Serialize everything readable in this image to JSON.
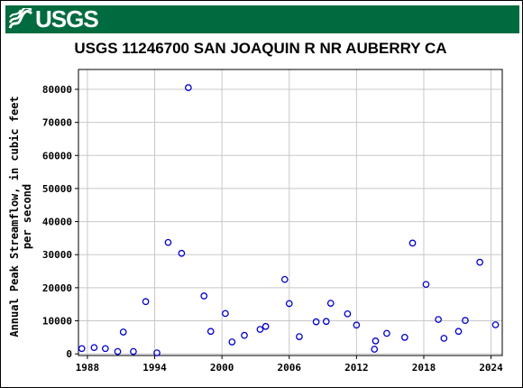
{
  "banner": {
    "logo_text": "USGS",
    "logo_icon": "usgs-wave-icon",
    "background_color": "#006b3f"
  },
  "chart_data": {
    "type": "scatter",
    "title": "USGS 11246700 SAN JOAQUIN R NR AUBERRY CA",
    "xlabel": "",
    "ylabel_lines": [
      "Annual Peak Streamflow, in cubic feet",
      "per second"
    ],
    "xlim": [
      1987.2,
      2025.0
    ],
    "ylim": [
      -500,
      86000
    ],
    "x_ticks": [
      1988,
      1994,
      2000,
      2006,
      2012,
      2018,
      2024
    ],
    "y_ticks": [
      0,
      10000,
      20000,
      30000,
      40000,
      50000,
      60000,
      70000,
      80000
    ],
    "y_tick_labels": [
      "0",
      "10000",
      "20000",
      "30000",
      "40000",
      "50000",
      "60000",
      "70000",
      "80000"
    ],
    "grid": true,
    "marker_color": "#0000cc",
    "points": [
      {
        "x": 1987.5,
        "y": 1600
      },
      {
        "x": 1988.6,
        "y": 1900
      },
      {
        "x": 1989.6,
        "y": 1600
      },
      {
        "x": 1990.7,
        "y": 700
      },
      {
        "x": 1991.2,
        "y": 6600
      },
      {
        "x": 1992.1,
        "y": 700
      },
      {
        "x": 1993.2,
        "y": 15800
      },
      {
        "x": 1994.2,
        "y": 300
      },
      {
        "x": 1995.2,
        "y": 33700
      },
      {
        "x": 1996.4,
        "y": 30400
      },
      {
        "x": 1997.0,
        "y": 80500
      },
      {
        "x": 1998.4,
        "y": 17500
      },
      {
        "x": 1999.0,
        "y": 6800
      },
      {
        "x": 2000.3,
        "y": 12200
      },
      {
        "x": 2000.9,
        "y": 3600
      },
      {
        "x": 2002.0,
        "y": 5600
      },
      {
        "x": 2003.4,
        "y": 7400
      },
      {
        "x": 2003.9,
        "y": 8300
      },
      {
        "x": 2005.6,
        "y": 22500
      },
      {
        "x": 2006.0,
        "y": 15200
      },
      {
        "x": 2006.9,
        "y": 5200
      },
      {
        "x": 2008.4,
        "y": 9700
      },
      {
        "x": 2009.3,
        "y": 9800
      },
      {
        "x": 2009.7,
        "y": 15300
      },
      {
        "x": 2011.2,
        "y": 12100
      },
      {
        "x": 2012.0,
        "y": 8700
      },
      {
        "x": 2013.6,
        "y": 1400
      },
      {
        "x": 2013.7,
        "y": 3900
      },
      {
        "x": 2014.7,
        "y": 6200
      },
      {
        "x": 2016.3,
        "y": 5000
      },
      {
        "x": 2017.0,
        "y": 33500
      },
      {
        "x": 2018.2,
        "y": 21000
      },
      {
        "x": 2019.3,
        "y": 10400
      },
      {
        "x": 2019.8,
        "y": 4700
      },
      {
        "x": 2021.1,
        "y": 6800
      },
      {
        "x": 2021.7,
        "y": 10100
      },
      {
        "x": 2023.0,
        "y": 27700
      },
      {
        "x": 2024.4,
        "y": 8800
      }
    ]
  }
}
